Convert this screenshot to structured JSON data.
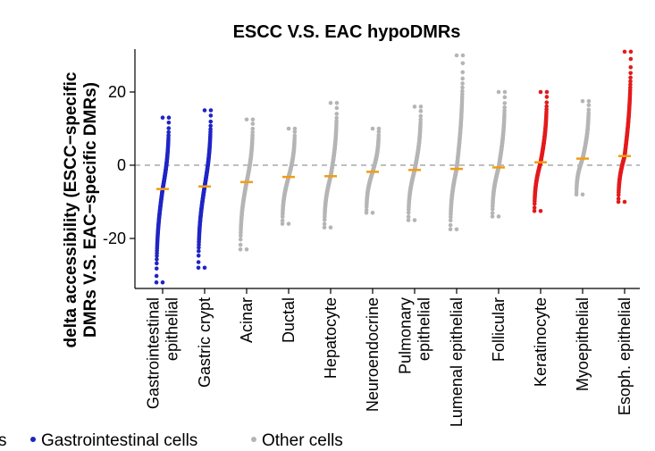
{
  "chart_data": {
    "type": "scatter",
    "title": "ESCC V.S. EAC hypoDMRs",
    "ylabel_lines": [
      "delta accessibility (ESCC−specific",
      "DMRs V.S. EAC−specific DMRs)"
    ],
    "xlabel": "",
    "ylim": [
      -35,
      33
    ],
    "yticks": [
      20,
      0,
      -20
    ],
    "ytick_labels": [
      "20",
      "0",
      "-20"
    ],
    "reference_line": 0,
    "categories": [
      {
        "label_lines": [
          "Gastrointestinal",
          "epithelial"
        ],
        "group": "gi",
        "median": -6.5,
        "min": -32,
        "max": 13
      },
      {
        "label_lines": [
          "Gastric crypt"
        ],
        "group": "gi",
        "median": -5.8,
        "min": -28,
        "max": 15
      },
      {
        "label_lines": [
          "Acinar"
        ],
        "group": "other",
        "median": -4.6,
        "min": -23,
        "max": 12.5
      },
      {
        "label_lines": [
          "Ductal"
        ],
        "group": "other",
        "median": -3.2,
        "min": -16,
        "max": 10
      },
      {
        "label_lines": [
          "Hepatocyte"
        ],
        "group": "other",
        "median": -3.0,
        "min": -17,
        "max": 17
      },
      {
        "label_lines": [
          "Neuroendocrine"
        ],
        "group": "other",
        "median": -1.8,
        "min": -13,
        "max": 10
      },
      {
        "label_lines": [
          "Pulmonary",
          "epithelial"
        ],
        "group": "other",
        "median": -1.3,
        "min": -15,
        "max": 16
      },
      {
        "label_lines": [
          "Lumenal epithelial"
        ],
        "group": "other",
        "median": -1.0,
        "min": -17.5,
        "max": 30
      },
      {
        "label_lines": [
          "Follicular"
        ],
        "group": "other",
        "median": -0.6,
        "min": -14,
        "max": 20
      },
      {
        "label_lines": [
          "Keratinocyte"
        ],
        "group": "eso",
        "median": 0.8,
        "min": -12.5,
        "max": 20
      },
      {
        "label_lines": [
          "Myoepithelial"
        ],
        "group": "other",
        "median": 1.8,
        "min": -8,
        "max": 17.5
      },
      {
        "label_lines": [
          "Esoph. epithelial"
        ],
        "group": "eso",
        "median": 2.5,
        "min": -10,
        "max": 31
      }
    ],
    "legend": [
      {
        "label": "Gastrointestinal cells",
        "group": "gi"
      },
      {
        "label": "Other cells",
        "group": "other"
      }
    ],
    "legend_partial_prefix": "s",
    "colors": {
      "gi": "#1f24c4",
      "other": "#b5b5b5",
      "eso": "#e31a1c",
      "median": "#f39c12",
      "refline": "#a8a8a8",
      "axis": "#000000"
    }
  }
}
